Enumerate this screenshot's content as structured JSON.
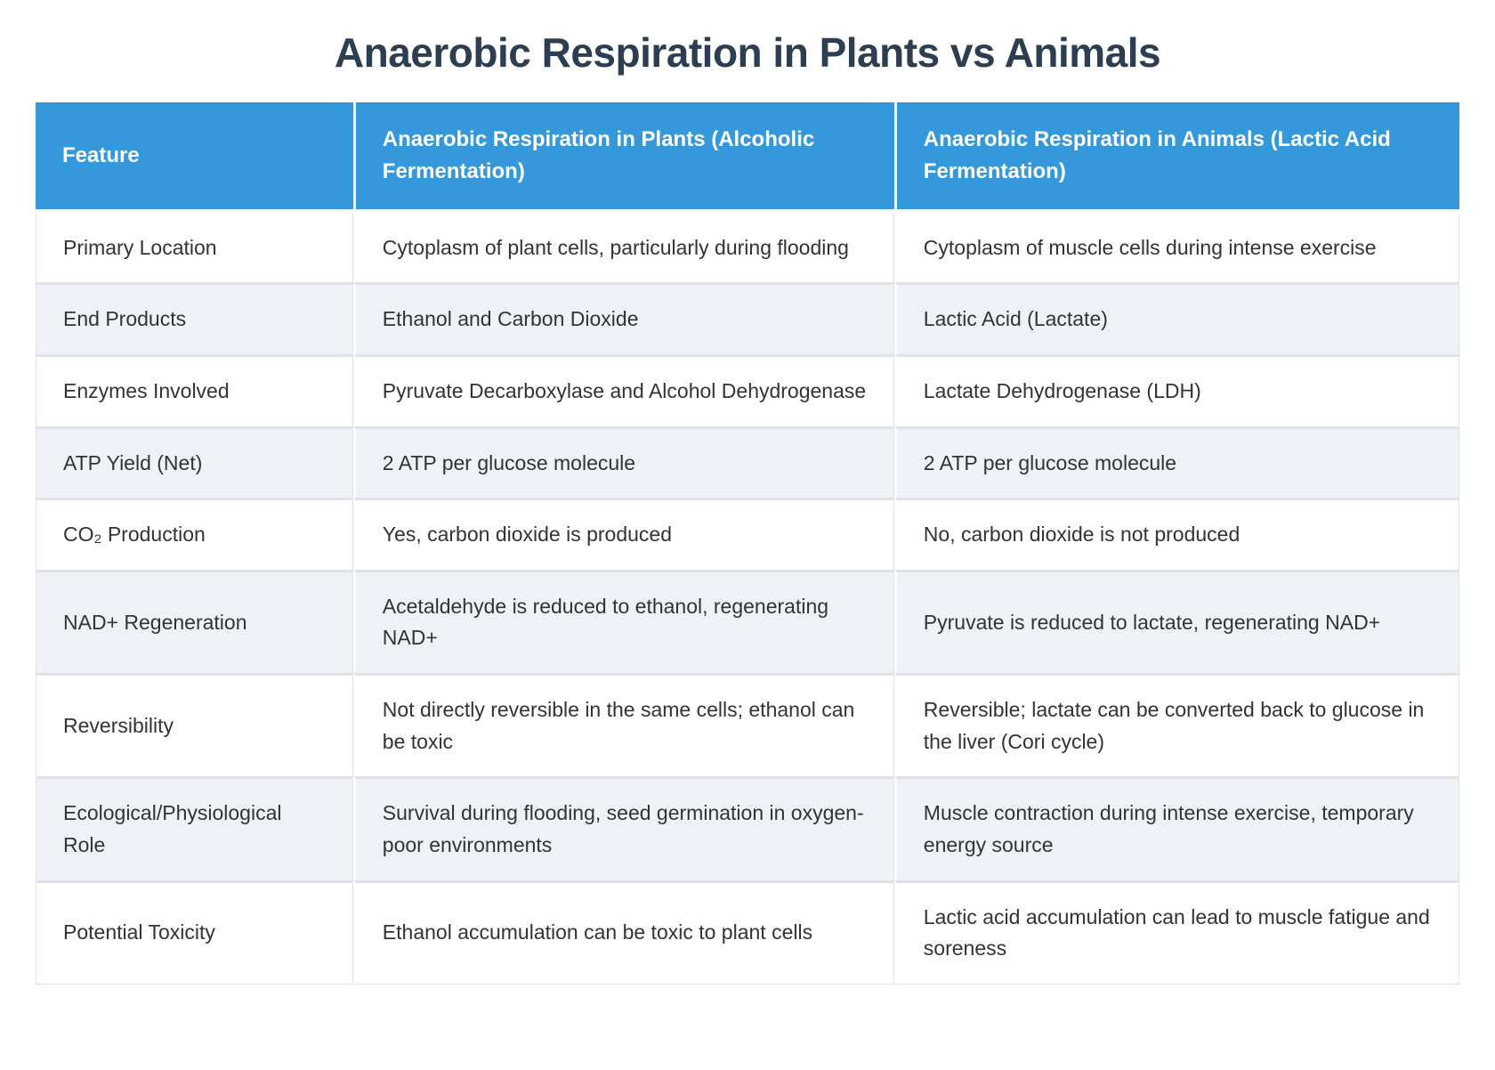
{
  "title": "Anaerobic Respiration in Plants vs Animals",
  "colors": {
    "header_bg": "#3598db",
    "header_text": "#ffffff",
    "alt_row_bg": "#eef2f7",
    "title_text": "#2c3e50",
    "body_text": "#333333",
    "divider": "#e0e2e5"
  },
  "table": {
    "columns": [
      "Feature",
      "Anaerobic Respiration in Plants (Alcoholic Fermentation)",
      "Anaerobic Respiration in Animals (Lactic Acid Fermentation)"
    ],
    "rows": [
      {
        "feature": "Primary Location",
        "plants": "Cytoplasm of plant cells, particularly during flooding",
        "animals": "Cytoplasm of muscle cells during intense exercise"
      },
      {
        "feature": "End Products",
        "plants": "Ethanol and Carbon Dioxide",
        "animals": "Lactic Acid (Lactate)"
      },
      {
        "feature": "Enzymes Involved",
        "plants": "Pyruvate Decarboxylase and Alcohol Dehydrogenase",
        "animals": "Lactate Dehydrogenase (LDH)"
      },
      {
        "feature": "ATP Yield (Net)",
        "plants": "2 ATP per glucose molecule",
        "animals": "2 ATP per glucose molecule"
      },
      {
        "feature": "CO₂ Production",
        "plants": "Yes, carbon dioxide is produced",
        "animals": "No, carbon dioxide is not produced"
      },
      {
        "feature": "NAD+ Regeneration",
        "plants": "Acetaldehyde is reduced to ethanol, regenerating NAD+",
        "animals": "Pyruvate is reduced to lactate, regenerating NAD+"
      },
      {
        "feature": "Reversibility",
        "plants": "Not directly reversible in the same cells; ethanol can be toxic",
        "animals": "Reversible; lactate can be converted back to glucose in the liver (Cori cycle)"
      },
      {
        "feature": "Ecological/Physiological Role",
        "plants": "Survival during flooding, seed germination in oxygen-poor environments",
        "animals": "Muscle contraction during intense exercise, temporary energy source"
      },
      {
        "feature": "Potential Toxicity",
        "plants": "Ethanol accumulation can be toxic to plant cells",
        "animals": "Lactic acid accumulation can lead to muscle fatigue and soreness"
      }
    ]
  }
}
